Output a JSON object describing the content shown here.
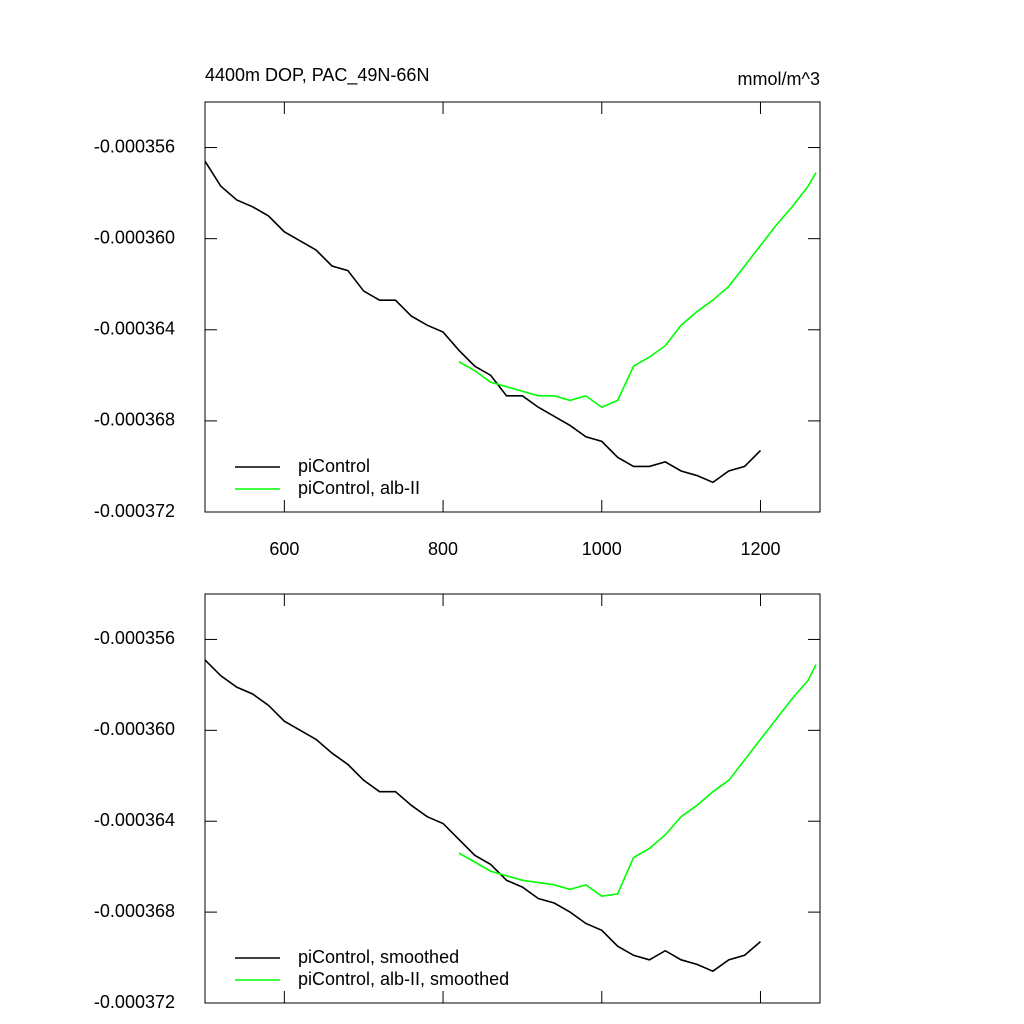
{
  "chart_data": [
    {
      "type": "line",
      "title": "4400m DOP, PAC_49N-66N",
      "units_label": "mmol/m^3",
      "x": [
        500,
        520,
        540,
        560,
        580,
        600,
        620,
        640,
        660,
        680,
        700,
        720,
        740,
        760,
        780,
        800,
        820,
        840,
        860,
        880,
        900,
        920,
        940,
        960,
        980,
        1000,
        1020,
        1040,
        1060,
        1080,
        1100,
        1120,
        1140,
        1160,
        1180,
        1200,
        1220,
        1240,
        1260,
        1270
      ],
      "series": [
        {
          "name": "piControl",
          "color": "#000000",
          "values": [
            -0.0003566,
            -0.0003577,
            -0.0003583,
            -0.0003586,
            -0.000359,
            -0.0003597,
            -0.0003601,
            -0.0003605,
            -0.0003612,
            -0.0003614,
            -0.0003623,
            -0.0003627,
            -0.0003627,
            -0.0003634,
            -0.0003638,
            -0.0003641,
            -0.0003649,
            -0.0003656,
            -0.000366,
            -0.0003669,
            -0.0003669,
            -0.0003674,
            -0.0003678,
            -0.0003682,
            -0.0003687,
            -0.0003689,
            -0.0003696,
            -0.00037,
            -0.00037,
            -0.0003698,
            -0.0003702,
            -0.0003704,
            -0.0003707,
            -0.0003702,
            -0.00037,
            -0.0003693,
            null,
            null,
            null,
            null
          ]
        },
        {
          "name": "piControl, alb-II",
          "color": "#00ff00",
          "values": [
            null,
            null,
            null,
            null,
            null,
            null,
            null,
            null,
            null,
            null,
            null,
            null,
            null,
            null,
            null,
            null,
            -0.0003654,
            -0.0003658,
            -0.0003663,
            -0.0003665,
            -0.0003667,
            -0.0003669,
            -0.0003669,
            -0.0003671,
            -0.0003669,
            -0.0003674,
            -0.0003671,
            -0.0003656,
            -0.0003652,
            -0.0003647,
            -0.0003638,
            -0.0003632,
            -0.0003627,
            -0.0003621,
            -0.0003612,
            -0.0003603,
            -0.0003594,
            -0.0003586,
            -0.0003577,
            -0.0003571
          ]
        }
      ],
      "xlim": [
        500,
        1275
      ],
      "xticks": [
        600,
        800,
        1000,
        1200
      ],
      "show_xtick_labels": true,
      "ylim": [
        -0.000372,
        -0.000354
      ],
      "yticks": [
        -0.000372,
        -0.000368,
        -0.000364,
        {
          "value": -0.00036,
          "label": "-0.000360"
        },
        -0.000356
      ],
      "grid": false,
      "legend": "lower left"
    },
    {
      "type": "line",
      "x": [
        500,
        520,
        540,
        560,
        580,
        600,
        620,
        640,
        660,
        680,
        700,
        720,
        740,
        760,
        780,
        800,
        820,
        840,
        860,
        880,
        900,
        920,
        940,
        960,
        980,
        1000,
        1020,
        1040,
        1060,
        1080,
        1100,
        1120,
        1140,
        1160,
        1180,
        1200,
        1220,
        1240,
        1260,
        1270
      ],
      "series": [
        {
          "name": "piControl, smoothed",
          "color": "#000000",
          "values": [
            -0.0003569,
            -0.0003576,
            -0.0003581,
            -0.0003584,
            -0.0003589,
            -0.0003596,
            -0.00036,
            -0.0003604,
            -0.000361,
            -0.0003615,
            -0.0003622,
            -0.0003627,
            -0.0003627,
            -0.0003633,
            -0.0003638,
            -0.0003641,
            -0.0003648,
            -0.0003655,
            -0.0003659,
            -0.0003666,
            -0.0003669,
            -0.0003674,
            -0.0003676,
            -0.000368,
            -0.0003685,
            -0.0003688,
            -0.0003695,
            -0.0003699,
            -0.0003701,
            -0.0003697,
            -0.0003701,
            -0.0003703,
            -0.0003706,
            -0.0003701,
            -0.0003699,
            -0.0003693,
            null,
            null,
            null,
            null
          ]
        },
        {
          "name": "piControl, alb-II, smoothed",
          "color": "#00ff00",
          "values": [
            null,
            null,
            null,
            null,
            null,
            null,
            null,
            null,
            null,
            null,
            null,
            null,
            null,
            null,
            null,
            null,
            -0.0003654,
            -0.0003658,
            -0.0003662,
            -0.0003664,
            -0.0003666,
            -0.0003667,
            -0.0003668,
            -0.000367,
            -0.0003668,
            -0.0003673,
            -0.0003672,
            -0.0003656,
            -0.0003652,
            -0.0003646,
            -0.0003638,
            -0.0003633,
            -0.0003627,
            -0.0003622,
            -0.0003613,
            -0.0003604,
            -0.0003595,
            -0.0003586,
            -0.0003578,
            -0.0003571
          ]
        }
      ],
      "xlim": [
        500,
        1275
      ],
      "xticks": [
        600,
        800,
        1000,
        1200
      ],
      "show_xtick_labels": false,
      "ylim": [
        -0.000372,
        -0.000354
      ],
      "yticks": [
        -0.000372,
        -0.000368,
        -0.000364,
        {
          "value": -0.00036,
          "label": "-0.000360"
        },
        -0.000356
      ],
      "grid": false,
      "legend": "lower left"
    }
  ]
}
